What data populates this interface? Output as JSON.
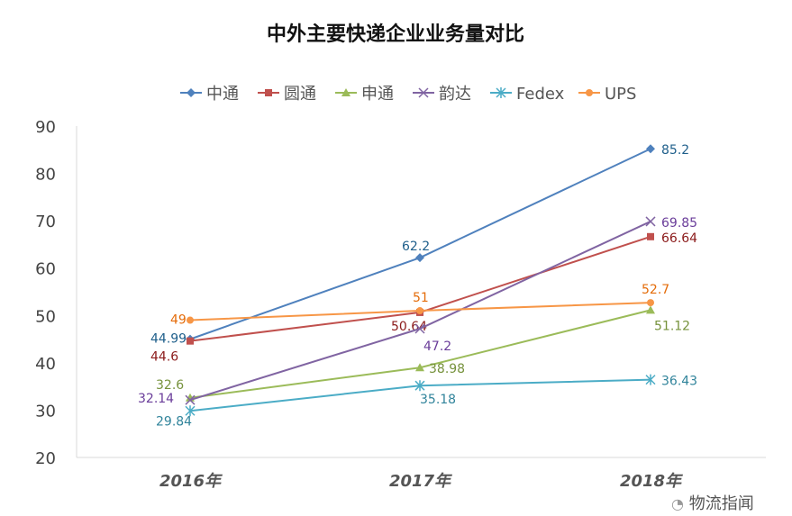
{
  "chart_data": {
    "type": "line",
    "title": "中外主要快递企业业务量对比",
    "categories": [
      "2016年",
      "2017年",
      "2018年"
    ],
    "ylim": [
      20,
      90
    ],
    "yticks": [
      20,
      30,
      40,
      50,
      60,
      70,
      80,
      90
    ],
    "grid": false,
    "legend": "top",
    "series": [
      {
        "name": "中通",
        "values": [
          44.99,
          62.2,
          85.2
        ],
        "color": "#4F81BD",
        "label_color": "#1F5F8B",
        "marker": "diamond"
      },
      {
        "name": "圆通",
        "values": [
          44.6,
          50.64,
          66.64
        ],
        "color": "#C0504D",
        "label_color": "#8B1A1A",
        "marker": "square"
      },
      {
        "name": "申通",
        "values": [
          32.6,
          38.98,
          51.12
        ],
        "color": "#9BBB59",
        "label_color": "#76923C",
        "marker": "triangle"
      },
      {
        "name": "韵达",
        "values": [
          32.14,
          47.2,
          69.85
        ],
        "color": "#8064A2",
        "label_color": "#6A3D9A",
        "marker": "x"
      },
      {
        "name": "Fedex",
        "values": [
          29.84,
          35.18,
          36.43
        ],
        "color": "#4BACC6",
        "label_color": "#31849B",
        "marker": "star"
      },
      {
        "name": "UPS",
        "values": [
          49,
          51,
          52.7
        ],
        "color": "#F79646",
        "label_color": "#E46C0A",
        "marker": "circle"
      }
    ]
  },
  "watermark": "物流指闻"
}
